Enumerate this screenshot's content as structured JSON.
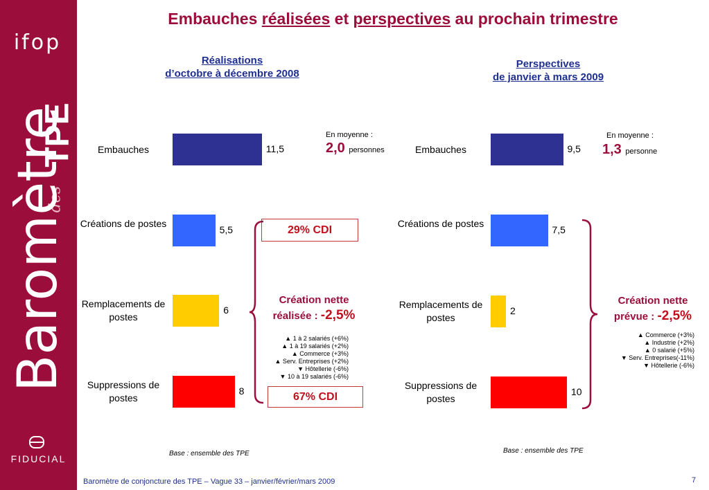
{
  "brand": {
    "logo": "ifop",
    "barometre": "Baromètre",
    "des": "des",
    "tpe": "TPE",
    "partner": "FIDUCIAL"
  },
  "title": {
    "prefix": "Embauches",
    "word1": "réalisées",
    "middle": "et",
    "word2": "perspectives",
    "suffix": "au prochain trimestre"
  },
  "colors": {
    "brand": "#9b0e3b",
    "navy": "#2e3192",
    "blue": "#3366ff",
    "yellow": "#ffcc00",
    "red": "#ff0000"
  },
  "chart_data": [
    {
      "type": "bar",
      "orientation": "horizontal",
      "title_line1": "Réalisations",
      "title_line2": "d’octobre à décembre 2008",
      "categories": [
        "Embauches",
        "Créations de postes",
        "Remplacements de postes",
        "Suppressions de postes"
      ],
      "values": [
        11.5,
        5.5,
        6,
        8
      ],
      "value_labels": [
        "11,5",
        "5,5",
        "6",
        "8"
      ],
      "bar_colors": [
        "#2e3192",
        "#3366ff",
        "#ffcc00",
        "#ff0000"
      ],
      "xlim": [
        0,
        12
      ]
    },
    {
      "type": "bar",
      "orientation": "horizontal",
      "title_line1": "Perspectives",
      "title_line2": "de janvier à mars 2009",
      "categories": [
        "Embauches",
        "Créations de postes",
        "Remplacements de postes",
        "Suppressions de postes"
      ],
      "values": [
        9.5,
        7.5,
        2,
        10
      ],
      "value_labels": [
        "9,5",
        "7,5",
        "2",
        "10"
      ],
      "bar_colors": [
        "#2e3192",
        "#3366ff",
        "#ffcc00",
        "#ff0000"
      ],
      "xlim": [
        0,
        12
      ]
    }
  ],
  "left": {
    "average": {
      "label": "En moyenne :",
      "value": "2,0",
      "unit": "personnes"
    },
    "cdi_top": "29% CDI",
    "cdi_bottom": "67% CDI",
    "net": {
      "line1": "Création nette",
      "line2": "réalisée :",
      "value": "-2,5%"
    },
    "details": [
      "▲ 1 à 2 salariés (+6%)",
      "▲ 1 à 19 salariés (+2%)",
      "▲ Commerce (+3%)",
      "▲ Serv. Entreprises (+2%)",
      "▼ Hôtellerie (-6%)",
      "▼ 10 à 19 salariés (-6%)"
    ],
    "base": "Base : ensemble des TPE"
  },
  "right": {
    "average": {
      "label": "En moyenne :",
      "value": "1,3",
      "unit": "personne"
    },
    "net": {
      "line1": "Création nette",
      "line2": "prévue :",
      "value": "-2,5%"
    },
    "details": [
      "▲ Commerce (+3%)",
      "▲ Industrie (+2%)",
      "▲ 0 salarié (+5%)",
      "▼ Serv. Entreprises(-11%)",
      "▼ Hôtellerie (-6%)"
    ],
    "base": "Base : ensemble des TPE"
  },
  "footer": "Baromètre de conjoncture des TPE – Vague 33 – janvier/février/mars 2009",
  "page_number": "7"
}
